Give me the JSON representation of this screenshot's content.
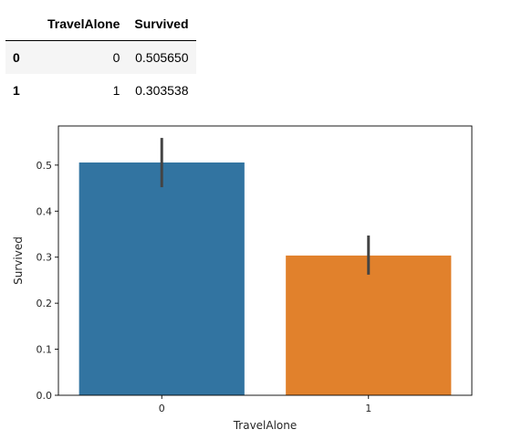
{
  "table": {
    "columns": [
      "",
      "TravelAlone",
      "Survived"
    ],
    "rows": [
      {
        "index": "0",
        "TravelAlone": "0",
        "Survived": "0.505650"
      },
      {
        "index": "1",
        "TravelAlone": "1",
        "Survived": "0.303538"
      }
    ]
  },
  "chart_data": {
    "type": "bar",
    "categories": [
      "0",
      "1"
    ],
    "values": [
      0.50565,
      0.303538
    ],
    "error_bars": [
      [
        0.452,
        0.559
      ],
      [
        0.262,
        0.347
      ]
    ],
    "colors": [
      "#3274a1",
      "#e1812c"
    ],
    "errorbar_color": "#444444",
    "xlabel": "TravelAlone",
    "ylabel": "Survived",
    "ylim": [
      0,
      0.585
    ],
    "yticks": [
      0.0,
      0.1,
      0.2,
      0.3,
      0.4,
      0.5
    ],
    "ytick_labels": [
      "0.0",
      "0.1",
      "0.2",
      "0.3",
      "0.4",
      "0.5"
    ],
    "grid": false,
    "title": ""
  }
}
